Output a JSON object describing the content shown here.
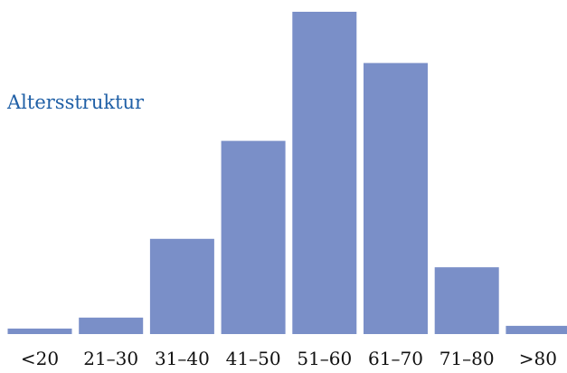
{
  "chart_data": {
    "type": "bar",
    "title": "Altersstruktur",
    "categories": [
      "<20",
      "21–30",
      "31–40",
      "41–50",
      "51–60",
      "61–70",
      "71–80",
      ">80"
    ],
    "values": [
      6,
      18,
      104,
      211,
      352,
      296,
      73,
      9
    ],
    "ylim": [
      0,
      352
    ],
    "grid": false,
    "legend": "none",
    "bar_color": "#7a8fc8",
    "title_color": "#1f5fa6"
  }
}
